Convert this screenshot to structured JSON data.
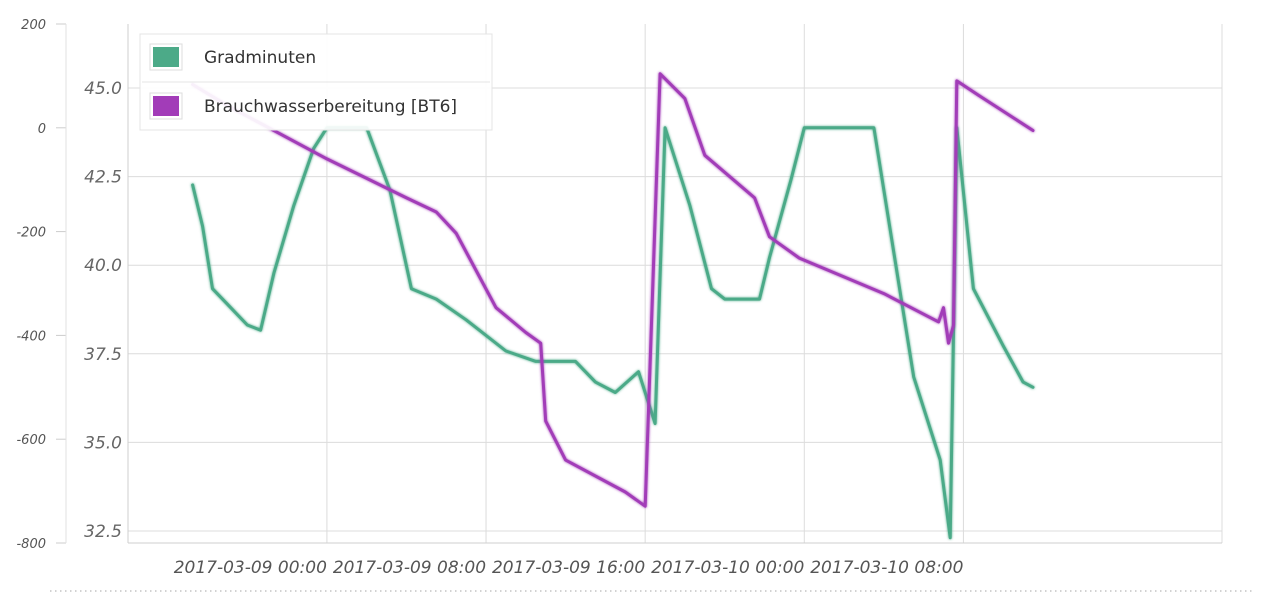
{
  "chart_data": {
    "type": "line",
    "title": "",
    "legend": {
      "position": "top-left"
    },
    "grid": true,
    "x": {
      "label": "",
      "range": [
        "2017-03-08 14:00",
        "2017-03-10 21:00"
      ],
      "ticks": [
        "2017-03-09 00:00",
        "2017-03-09 08:00",
        "2017-03-09 16:00",
        "2017-03-10 00:00",
        "2017-03-10 08:00"
      ]
    },
    "y_left": {
      "label": "",
      "range": [
        -800,
        200
      ],
      "ticks": [
        "200",
        "0",
        "-200",
        "-400",
        "-600",
        "-800"
      ]
    },
    "y_right": {
      "label": "",
      "range": [
        32.5,
        45.0
      ],
      "ticks": [
        "45.0",
        "42.5",
        "40.0",
        "37.5",
        "35.0",
        "32.5"
      ]
    },
    "series": [
      {
        "name": "Gradminuten",
        "axis": "left",
        "color": "#4caa88",
        "points": [
          [
            "2017-03-08 17:15",
            -110
          ],
          [
            "2017-03-08 17:45",
            -190
          ],
          [
            "2017-03-08 18:15",
            -310
          ],
          [
            "2017-03-08 19:00",
            -340
          ],
          [
            "2017-03-08 20:00",
            -380
          ],
          [
            "2017-03-08 20:40",
            -390
          ],
          [
            "2017-03-08 21:20",
            -280
          ],
          [
            "2017-03-08 22:20",
            -150
          ],
          [
            "2017-03-08 23:20",
            -40
          ],
          [
            "2017-03-09 00:00",
            0
          ],
          [
            "2017-03-09 02:00",
            0
          ],
          [
            "2017-03-09 03:10",
            -120
          ],
          [
            "2017-03-09 04:15",
            -310
          ],
          [
            "2017-03-09 05:30",
            -330
          ],
          [
            "2017-03-09 07:00",
            -370
          ],
          [
            "2017-03-09 09:00",
            -430
          ],
          [
            "2017-03-09 10:30",
            -450
          ],
          [
            "2017-03-09 12:30",
            -450
          ],
          [
            "2017-03-09 13:30",
            -490
          ],
          [
            "2017-03-09 14:30",
            -510
          ],
          [
            "2017-03-09 15:40",
            -470
          ],
          [
            "2017-03-09 16:30",
            -570
          ],
          [
            "2017-03-09 17:00",
            0
          ],
          [
            "2017-03-09 18:15",
            -150
          ],
          [
            "2017-03-09 19:20",
            -310
          ],
          [
            "2017-03-09 20:00",
            -330
          ],
          [
            "2017-03-09 21:45",
            -330
          ],
          [
            "2017-03-09 22:15",
            -250
          ],
          [
            "2017-03-09 23:20",
            -100
          ],
          [
            "2017-03-10 00:00",
            0
          ],
          [
            "2017-03-10 02:30",
            0
          ],
          [
            "2017-03-10 03:30",
            0
          ],
          [
            "2017-03-10 04:30",
            -240
          ],
          [
            "2017-03-10 05:30",
            -480
          ],
          [
            "2017-03-10 06:50",
            -640
          ],
          [
            "2017-03-10 07:20",
            -790
          ],
          [
            "2017-03-10 07:40",
            0
          ],
          [
            "2017-03-10 08:30",
            -310
          ],
          [
            "2017-03-10 10:00",
            -420
          ],
          [
            "2017-03-10 11:00",
            -490
          ],
          [
            "2017-03-10 11:30",
            -500
          ]
        ]
      },
      {
        "name": "Brauchwasserbereitung [BT6]",
        "axis": "right",
        "color": "#a23cb8",
        "points": [
          [
            "2017-03-08 17:15",
            45.1
          ],
          [
            "2017-03-08 19:00",
            44.5
          ],
          [
            "2017-03-09 00:00",
            43.0
          ],
          [
            "2017-03-09 04:00",
            41.9
          ],
          [
            "2017-03-09 05:30",
            41.5
          ],
          [
            "2017-03-09 06:30",
            40.9
          ],
          [
            "2017-03-09 08:30",
            38.8
          ],
          [
            "2017-03-09 10:00",
            38.1
          ],
          [
            "2017-03-09 10:45",
            37.8
          ],
          [
            "2017-03-09 11:00",
            35.6
          ],
          [
            "2017-03-09 12:00",
            34.5
          ],
          [
            "2017-03-09 15:00",
            33.6
          ],
          [
            "2017-03-09 16:00",
            33.2
          ],
          [
            "2017-03-09 16:45",
            45.4
          ],
          [
            "2017-03-09 18:00",
            44.7
          ],
          [
            "2017-03-09 19:00",
            43.1
          ],
          [
            "2017-03-09 21:30",
            41.9
          ],
          [
            "2017-03-09 22:15",
            40.8
          ],
          [
            "2017-03-09 23:45",
            40.2
          ],
          [
            "2017-03-10 04:00",
            39.2
          ],
          [
            "2017-03-10 06:45",
            38.4
          ],
          [
            "2017-03-10 07:00",
            38.8
          ],
          [
            "2017-03-10 07:15",
            37.8
          ],
          [
            "2017-03-10 07:30",
            38.3
          ],
          [
            "2017-03-10 07:40",
            45.2
          ],
          [
            "2017-03-10 08:45",
            44.8
          ],
          [
            "2017-03-10 11:30",
            43.8
          ]
        ]
      }
    ]
  }
}
